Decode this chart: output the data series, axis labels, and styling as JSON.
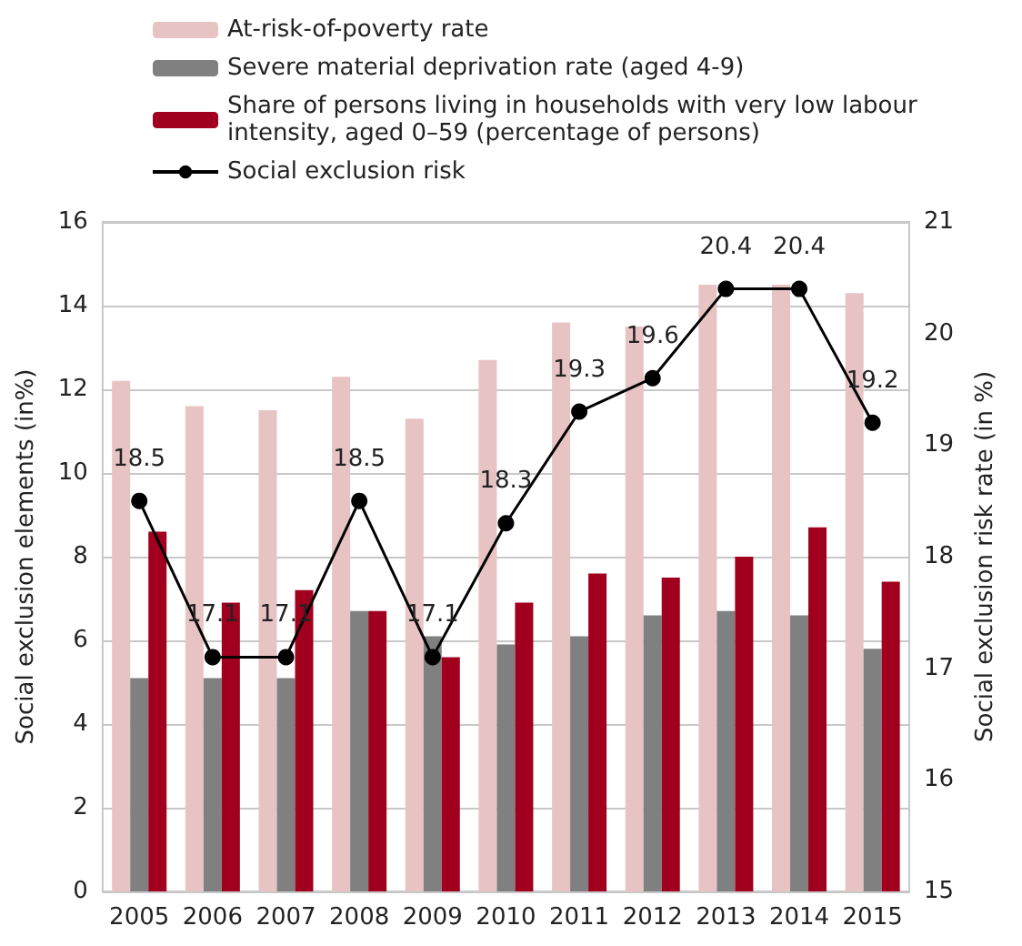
{
  "chart_data": {
    "type": "bar",
    "ylabel": "Social exclusion elements (in%)",
    "y2label": "Social exclusion risk rate (in %)",
    "categories": [
      "2005",
      "2006",
      "2007",
      "2008",
      "2009",
      "2010",
      "2011",
      "2012",
      "2013",
      "2014",
      "2015"
    ],
    "series": [
      {
        "name": "At-risk-of-poverty rate",
        "color": "#e8c3c3",
        "values": [
          12.2,
          11.6,
          11.5,
          12.3,
          11.3,
          12.7,
          13.6,
          13.5,
          14.5,
          14.5,
          14.3
        ]
      },
      {
        "name": "Severe material deprivation rate (aged 4-9)",
        "color": "#808080",
        "values": [
          5.1,
          5.1,
          5.1,
          6.7,
          6.1,
          5.9,
          6.1,
          6.6,
          6.7,
          6.6,
          5.8
        ]
      },
      {
        "name": "Share of persons living in households with very low labour intensity, aged 0–59 (percentage of persons)",
        "color": "#a0001e",
        "values": [
          8.6,
          6.9,
          7.2,
          6.7,
          5.6,
          6.9,
          7.6,
          7.5,
          8.0,
          8.7,
          7.4
        ]
      },
      {
        "name": "Social exclusion risk",
        "type": "line",
        "axis": "y2",
        "color": "#000000",
        "marker": "circle",
        "data_labels": true,
        "values": [
          18.5,
          17.1,
          17.1,
          18.5,
          17.1,
          18.3,
          19.3,
          19.6,
          20.4,
          20.4,
          19.2
        ]
      }
    ],
    "ylim": [
      0,
      16
    ],
    "yticks": [
      0,
      2,
      4,
      6,
      8,
      10,
      12,
      14,
      16
    ],
    "y2lim": [
      15,
      21
    ],
    "y2ticks": [
      15,
      16,
      17,
      18,
      19,
      20,
      21
    ],
    "grid": "y",
    "legend": "top"
  }
}
